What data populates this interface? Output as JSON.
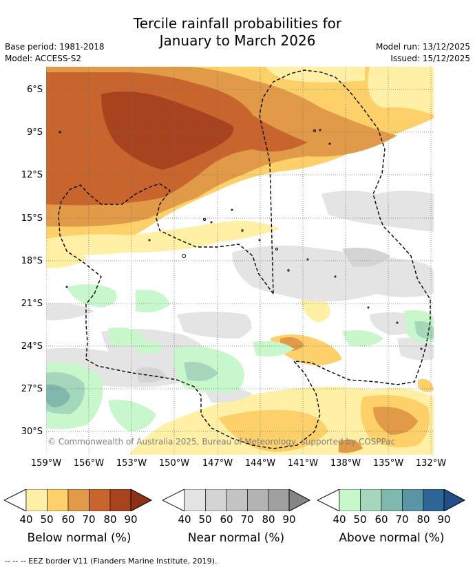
{
  "title_line1": "Tercile rainfall probabilities for",
  "title_line2": "January to March 2026",
  "base_period": "Base period: 1981-2018",
  "model": "Model: ACCESS-S2",
  "model_run": "Model run: 13/12/2025",
  "issued": "Issued: 15/12/2025",
  "latitude_labels": [
    "6°S",
    "9°S",
    "12°S",
    "15°S",
    "18°S",
    "21°S",
    "24°S",
    "27°S",
    "30°S"
  ],
  "longitude_labels": [
    "159°W",
    "156°W",
    "153°W",
    "150°W",
    "147°W",
    "144°W",
    "141°W",
    "138°W",
    "135°W",
    "132°W"
  ],
  "credit": "© Commonwealth of Australia 2025, Bureau of Meteorology, supported by COSPPac",
  "colorbars": [
    {
      "caption": "Below normal (%)",
      "ticks": [
        "40",
        "50",
        "60",
        "70",
        "80",
        "90"
      ],
      "colors": [
        "#fff0a6",
        "#fdd06a",
        "#e19a47",
        "#c8642e",
        "#a84320",
        "#8c3016"
      ]
    },
    {
      "caption": "Near normal (%)",
      "ticks": [
        "40",
        "50",
        "60",
        "70",
        "80",
        "90"
      ],
      "colors": [
        "#e4e4e4",
        "#d4d4d4",
        "#c3c3c3",
        "#b3b3b3",
        "#a0a0a0",
        "#858585"
      ]
    },
    {
      "caption": "Above normal (%)",
      "ticks": [
        "40",
        "50",
        "60",
        "70",
        "80",
        "90"
      ],
      "colors": [
        "#c9f7cc",
        "#a5d7bd",
        "#80b8ae",
        "#5a95a4",
        "#2f6497",
        "#1f4f84"
      ]
    }
  ],
  "footer": "-- -- -- EEZ border V11 (Flanders Marine Institute, 2019)."
}
